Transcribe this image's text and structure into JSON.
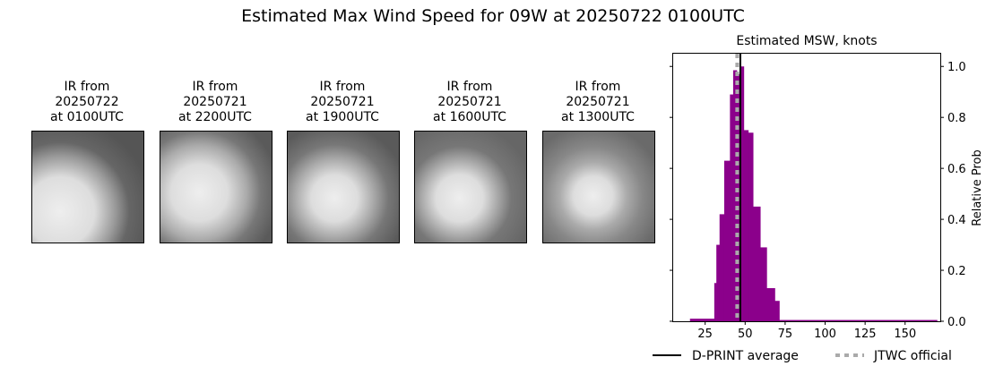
{
  "title": "Estimated Max Wind Speed for 09W at 20250722 0100UTC",
  "ir_panels": [
    {
      "line1": "IR from",
      "line2": "20250722",
      "line3": "at 0100UTC"
    },
    {
      "line1": "IR from",
      "line2": "20250721",
      "line3": "at 2200UTC"
    },
    {
      "line1": "IR from",
      "line2": "20250721",
      "line3": "at 1900UTC"
    },
    {
      "line1": "IR from",
      "line2": "20250721",
      "line3": "at 1600UTC"
    },
    {
      "line1": "IR from",
      "line2": "20250721",
      "line3": "at 1300UTC"
    }
  ],
  "chart_data": {
    "type": "bar",
    "title": "Estimated MSW, knots",
    "xlabel": "",
    "ylabel": "Relative Prob",
    "xlim": [
      5,
      172
    ],
    "ylim": [
      0,
      1.05
    ],
    "xticks": [
      25,
      50,
      75,
      100,
      125,
      150
    ],
    "yticks": [
      0.0,
      0.2,
      0.4,
      0.6,
      0.8,
      1.0
    ],
    "ytick_labels": [
      "0.0",
      "0.2",
      "0.4",
      "0.6",
      "0.8",
      "1.0"
    ],
    "y_axis_side": "right",
    "bar_color": "#8b008b",
    "bins": [
      {
        "from": 15.5,
        "to": 30.7,
        "value": 0.01
      },
      {
        "from": 30.7,
        "to": 32,
        "value": 0.15
      },
      {
        "from": 32,
        "to": 34,
        "value": 0.3
      },
      {
        "from": 34,
        "to": 36.9,
        "value": 0.42
      },
      {
        "from": 36.9,
        "to": 40.5,
        "value": 0.63
      },
      {
        "from": 40.5,
        "to": 42.5,
        "value": 0.89
      },
      {
        "from": 42.5,
        "to": 44.8,
        "value": 0.985
      },
      {
        "from": 44.8,
        "to": 47.1,
        "value": 0.97
      },
      {
        "from": 47.1,
        "to": 49.2,
        "value": 1.0
      },
      {
        "from": 49.2,
        "to": 52,
        "value": 0.75
      },
      {
        "from": 52,
        "to": 55,
        "value": 0.74
      },
      {
        "from": 55,
        "to": 59.5,
        "value": 0.45
      },
      {
        "from": 59.5,
        "to": 63.5,
        "value": 0.29
      },
      {
        "from": 63.5,
        "to": 68.6,
        "value": 0.13
      },
      {
        "from": 68.6,
        "to": 71.4,
        "value": 0.08
      },
      {
        "from": 71.4,
        "to": 170,
        "value": 0.005
      }
    ],
    "dprint_average": 47,
    "jtwc_official": 45,
    "legend": [
      {
        "label": "D-PRINT average",
        "color": "#000000",
        "style": "solid"
      },
      {
        "label": "JTWC official",
        "color": "#aaaaaa",
        "style": "dotted"
      }
    ],
    "legend_placement": "bottom"
  }
}
